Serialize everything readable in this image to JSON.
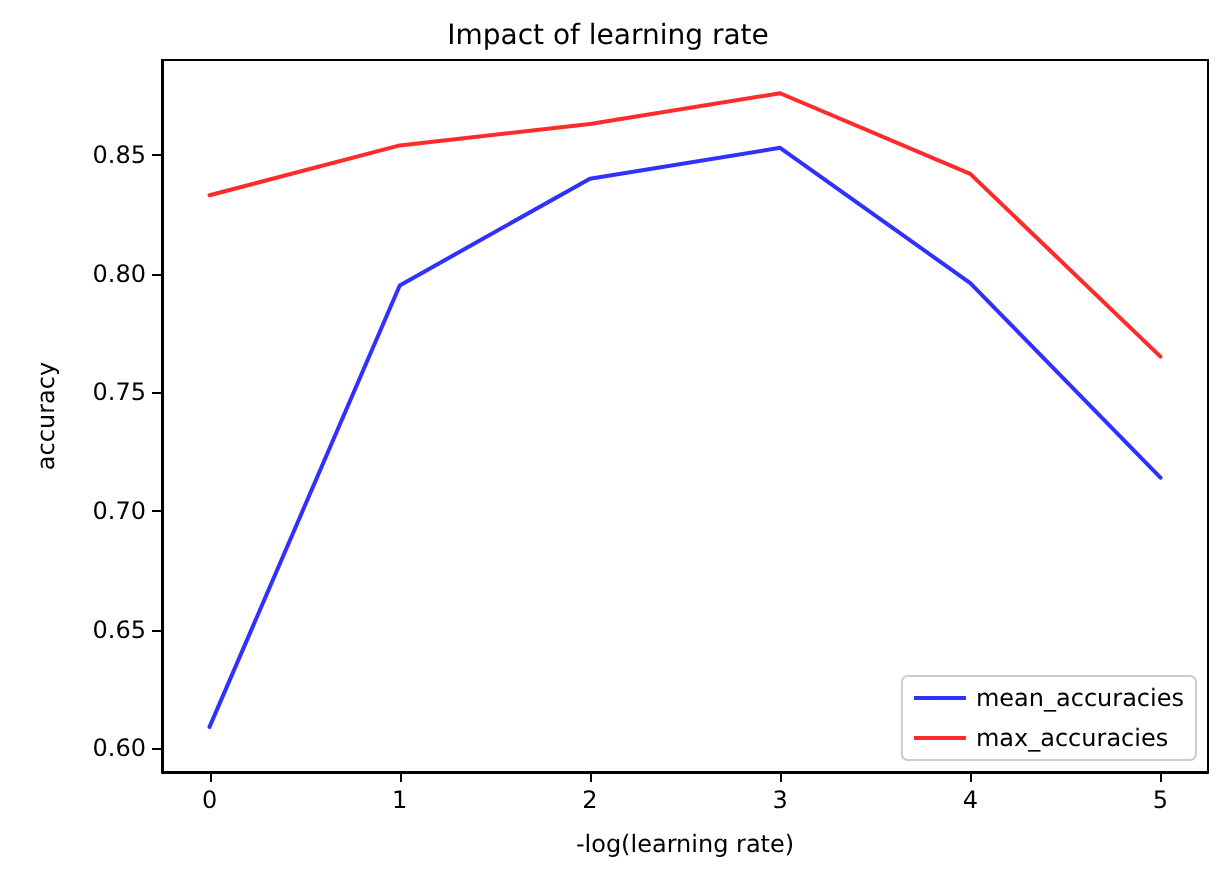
{
  "chart_data": {
    "type": "line",
    "title": "Impact of learning rate",
    "xlabel": "-log(learning rate)",
    "ylabel": "accuracy",
    "x": [
      0,
      1,
      2,
      3,
      4,
      5
    ],
    "series": [
      {
        "name": "mean_accuracies",
        "color": "#3030ff",
        "values": [
          0.609,
          0.795,
          0.84,
          0.853,
          0.796,
          0.714
        ]
      },
      {
        "name": "max_accuracies",
        "color": "#ff2a2a",
        "values": [
          0.833,
          0.854,
          0.863,
          0.876,
          0.842,
          0.765
        ]
      }
    ],
    "xlim": [
      -0.25,
      5.25
    ],
    "xticks": [
      0,
      1,
      2,
      3,
      4,
      5
    ],
    "ylim": [
      0.59,
      0.89
    ],
    "yticks": [
      {
        "value": 0.6,
        "label": "0.60"
      },
      0.65,
      {
        "value": 0.7,
        "label": "0.70"
      },
      0.75,
      {
        "value": 0.8,
        "label": "0.80"
      },
      0.85
    ],
    "grid": false,
    "legend": "bottom right",
    "marker": "none",
    "line_style": "solid"
  }
}
